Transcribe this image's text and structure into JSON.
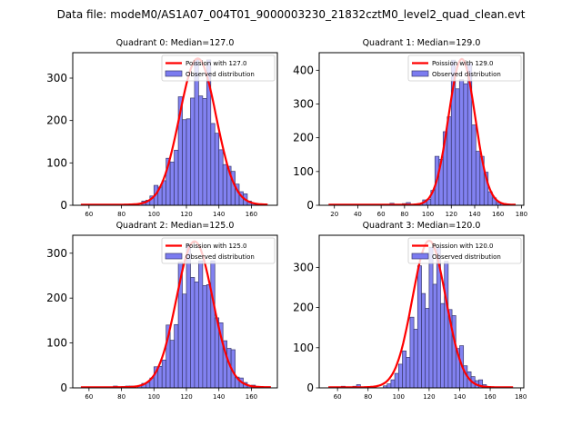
{
  "suptitle": "Data file: modeM0/AS1A07_004T01_9000003230_21832cztM0_level2_quad_clean.evt",
  "colors": {
    "bar_fill": "#7b7bf0",
    "bar_edge": "#3a3a6e",
    "poisson_line": "#ff0000"
  },
  "chart_data": [
    {
      "type": "bar",
      "title": "Quadrant 0: Median=127.0",
      "legend": [
        "Poission with 127.0",
        "Observed distribution"
      ],
      "legend_position": "top-right",
      "xlim": [
        50,
        176
      ],
      "ylim": [
        0,
        360
      ],
      "xticks": [
        60,
        80,
        100,
        120,
        140,
        160
      ],
      "yticks": [
        0,
        100,
        200,
        300
      ],
      "bin_width": 2.5,
      "bins": [
        55,
        57.5,
        60,
        62.5,
        65,
        67.5,
        70,
        72.5,
        75,
        77.5,
        80,
        82.5,
        85,
        87.5,
        90,
        92.5,
        95,
        97.5,
        100,
        102.5,
        105,
        107.5,
        110,
        112.5,
        115,
        117.5,
        120,
        122.5,
        125,
        127.5,
        130,
        132.5,
        135,
        137.5,
        140,
        142.5,
        145,
        147.5,
        150,
        152.5,
        155,
        157.5,
        160,
        162.5,
        165
      ],
      "values": [
        0,
        0,
        0,
        0,
        0,
        0,
        0,
        0,
        0,
        0,
        0,
        0,
        0,
        0,
        0,
        10,
        12,
        22,
        47,
        43,
        58,
        111,
        102,
        130,
        256,
        202,
        204,
        253,
        343,
        258,
        252,
        343,
        193,
        170,
        131,
        96,
        92,
        80,
        50,
        32,
        27,
        10,
        4,
        2,
        1
      ],
      "poisson_mean": 127.0,
      "poisson_peak": 345,
      "poisson_x_range": [
        55,
        170
      ]
    },
    {
      "type": "bar",
      "title": "Quadrant 1: Median=129.0",
      "legend": [
        "Poission with 129.0",
        "Observed distribution"
      ],
      "legend_position": "top-right",
      "xlim": [
        7,
        182
      ],
      "ylim": [
        0,
        452
      ],
      "xticks": [
        20,
        40,
        60,
        80,
        100,
        120,
        140,
        160,
        180
      ],
      "yticks": [
        0,
        100,
        200,
        300,
        400
      ],
      "bin_width": 3.5,
      "bins": [
        15,
        18.5,
        22,
        25.5,
        29,
        32.5,
        36,
        39.5,
        43,
        46.5,
        50,
        53.5,
        57,
        60.5,
        64,
        67.5,
        71,
        74.5,
        78,
        81.5,
        85,
        88.5,
        92,
        95.5,
        99,
        102.5,
        106,
        109.5,
        113,
        116.5,
        120,
        123.5,
        127,
        130.5,
        134,
        137.5,
        141,
        144.5,
        148,
        151.5,
        155,
        158.5,
        162,
        165.5,
        169,
        172.5
      ],
      "values": [
        0,
        0,
        0,
        0,
        0,
        0,
        0,
        0,
        0,
        0,
        0,
        0,
        0,
        0,
        2,
        6,
        2,
        0,
        5,
        8,
        2,
        4,
        4,
        16,
        18,
        44,
        145,
        136,
        218,
        262,
        430,
        345,
        372,
        360,
        420,
        238,
        160,
        145,
        98,
        40,
        22,
        8,
        4,
        2,
        0,
        0
      ],
      "poisson_mean": 129.0,
      "poisson_peak": 432,
      "poisson_x_range": [
        15,
        175
      ]
    },
    {
      "type": "bar",
      "title": "Quadrant 2: Median=125.0",
      "legend": [
        "Poission with 125.0",
        "Observed distribution"
      ],
      "legend_position": "top-right",
      "xlim": [
        50,
        176
      ],
      "ylim": [
        0,
        340
      ],
      "xticks": [
        60,
        80,
        100,
        120,
        140,
        160
      ],
      "yticks": [
        0,
        100,
        200,
        300
      ],
      "bin_width": 2.5,
      "bins": [
        55,
        57.5,
        60,
        62.5,
        65,
        67.5,
        70,
        72.5,
        75,
        77.5,
        80,
        82.5,
        85,
        87.5,
        90,
        92.5,
        95,
        97.5,
        100,
        102.5,
        105,
        107.5,
        110,
        112.5,
        115,
        117.5,
        120,
        122.5,
        125,
        127.5,
        130,
        132.5,
        135,
        137.5,
        140,
        142.5,
        145,
        147.5,
        150,
        152.5,
        155,
        157.5,
        160,
        162.5,
        165
      ],
      "values": [
        0,
        0,
        0,
        0,
        0,
        0,
        0,
        0,
        4,
        0,
        3,
        4,
        4,
        0,
        4,
        10,
        12,
        22,
        47,
        48,
        62,
        140,
        106,
        141,
        280,
        209,
        320,
        246,
        236,
        283,
        228,
        230,
        283,
        156,
        145,
        105,
        88,
        85,
        24,
        22,
        12,
        4,
        6,
        2,
        0
      ],
      "poisson_mean": 125.0,
      "poisson_peak": 325,
      "poisson_x_range": [
        55,
        172
      ]
    },
    {
      "type": "bar",
      "title": "Quadrant 3: Median=120.0",
      "legend": [
        "Poission with 120.0",
        "Observed distribution"
      ],
      "legend_position": "top-right",
      "xlim": [
        48,
        182
      ],
      "ylim": [
        0,
        380
      ],
      "xticks": [
        60,
        80,
        100,
        120,
        140,
        160,
        180
      ],
      "yticks": [
        0,
        100,
        200,
        300
      ],
      "bin_width": 2.5,
      "bins": [
        55,
        57.5,
        60,
        62.5,
        65,
        67.5,
        70,
        72.5,
        75,
        77.5,
        80,
        82.5,
        85,
        87.5,
        90,
        92.5,
        95,
        97.5,
        100,
        102.5,
        105,
        107.5,
        110,
        112.5,
        115,
        117.5,
        120,
        122.5,
        125,
        127.5,
        130,
        132.5,
        135,
        137.5,
        140,
        142.5,
        145,
        147.5,
        150,
        152.5,
        155,
        157.5,
        160,
        162.5,
        165
      ],
      "values": [
        0,
        0,
        0,
        4,
        0,
        0,
        4,
        8,
        0,
        0,
        0,
        3,
        0,
        0,
        5,
        10,
        20,
        36,
        59,
        92,
        76,
        176,
        146,
        304,
        235,
        198,
        350,
        258,
        350,
        210,
        315,
        195,
        180,
        98,
        105,
        55,
        40,
        28,
        18,
        20,
        8,
        2,
        0,
        0,
        0
      ],
      "poisson_mean": 120.0,
      "poisson_peak": 365,
      "poisson_x_range": [
        54,
        175
      ]
    }
  ]
}
